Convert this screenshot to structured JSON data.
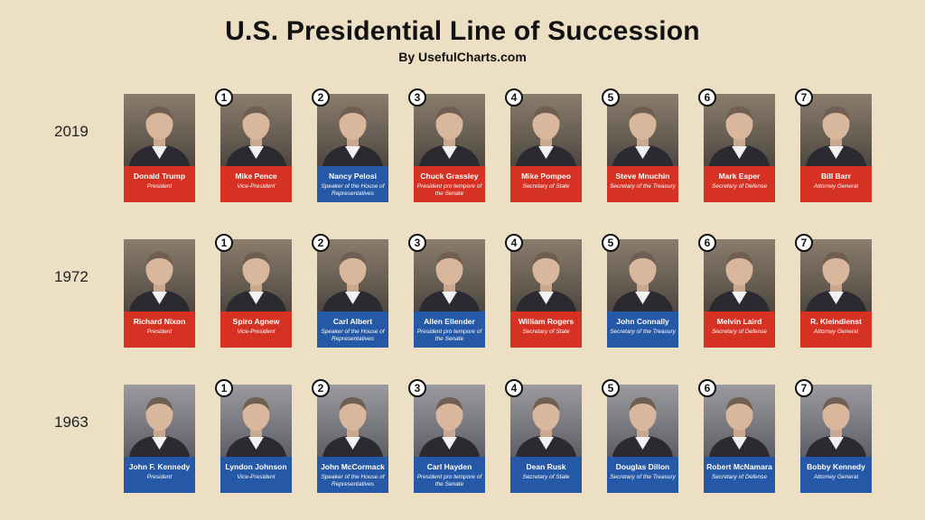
{
  "header": {
    "title": "U.S. Presidential Line of Succession",
    "subtitle": "By UsefulCharts.com"
  },
  "rows": [
    {
      "year": "2019",
      "people": [
        {
          "badge": "",
          "name": "Donald Trump",
          "role": "President",
          "color": "red"
        },
        {
          "badge": "1",
          "name": "Mike Pence",
          "role": "Vice-President",
          "color": "red"
        },
        {
          "badge": "2",
          "name": "Nancy Pelosi",
          "role": "Speaker of the House of Representatives",
          "color": "blue"
        },
        {
          "badge": "3",
          "name": "Chuck Grassley",
          "role": "President pro tempore of the Senate",
          "color": "red"
        },
        {
          "badge": "4",
          "name": "Mike Pompeo",
          "role": "Secretary of State",
          "color": "red"
        },
        {
          "badge": "5",
          "name": "Steve Mnuchin",
          "role": "Secretary of the Treasury",
          "color": "red"
        },
        {
          "badge": "6",
          "name": "Mark Esper",
          "role": "Secretary of Defense",
          "color": "red"
        },
        {
          "badge": "7",
          "name": "Bill Barr",
          "role": "Attorney General",
          "color": "red"
        }
      ]
    },
    {
      "year": "1972",
      "people": [
        {
          "badge": "",
          "name": "Richard Nixon",
          "role": "President",
          "color": "red"
        },
        {
          "badge": "1",
          "name": "Spiro Agnew",
          "role": "Vice-President",
          "color": "red"
        },
        {
          "badge": "2",
          "name": "Carl Albert",
          "role": "Speaker of the House of Representatives",
          "color": "blue"
        },
        {
          "badge": "3",
          "name": "Allen Ellender",
          "role": "President pro tempore of the Senate",
          "color": "blue"
        },
        {
          "badge": "4",
          "name": "William Rogers",
          "role": "Secretary of State",
          "color": "red"
        },
        {
          "badge": "5",
          "name": "John Connally",
          "role": "Secretary of the Treasury",
          "color": "blue"
        },
        {
          "badge": "6",
          "name": "Melvin Laird",
          "role": "Secretary of Defense",
          "color": "red"
        },
        {
          "badge": "7",
          "name": "R. Kleindienst",
          "role": "Attorney General",
          "color": "red"
        }
      ]
    },
    {
      "year": "1963",
      "people": [
        {
          "badge": "",
          "name": "John F. Kennedy",
          "role": "President",
          "color": "blue"
        },
        {
          "badge": "1",
          "name": "Lyndon Johnson",
          "role": "Vice-President",
          "color": "blue"
        },
        {
          "badge": "2",
          "name": "John McCormack",
          "role": "Speaker of the House of Representatives",
          "color": "blue"
        },
        {
          "badge": "3",
          "name": "Carl Hayden",
          "role": "President pro tempore of the Senate",
          "color": "blue"
        },
        {
          "badge": "4",
          "name": "Dean Rusk",
          "role": "Secretary of State",
          "color": "blue"
        },
        {
          "badge": "5",
          "name": "Douglas Dillon",
          "role": "Secretary of the Treasury",
          "color": "blue"
        },
        {
          "badge": "6",
          "name": "Robert McNamara",
          "role": "Secretary of Defense",
          "color": "blue"
        },
        {
          "badge": "7",
          "name": "Bobby Kennedy",
          "role": "Attorney General",
          "color": "blue"
        }
      ]
    }
  ],
  "colors": {
    "background": "#ecdfc3",
    "red_plate": "#d63224",
    "blue_plate": "#2558a6"
  },
  "icons": {
    "portrait": "person-portrait-icon"
  }
}
